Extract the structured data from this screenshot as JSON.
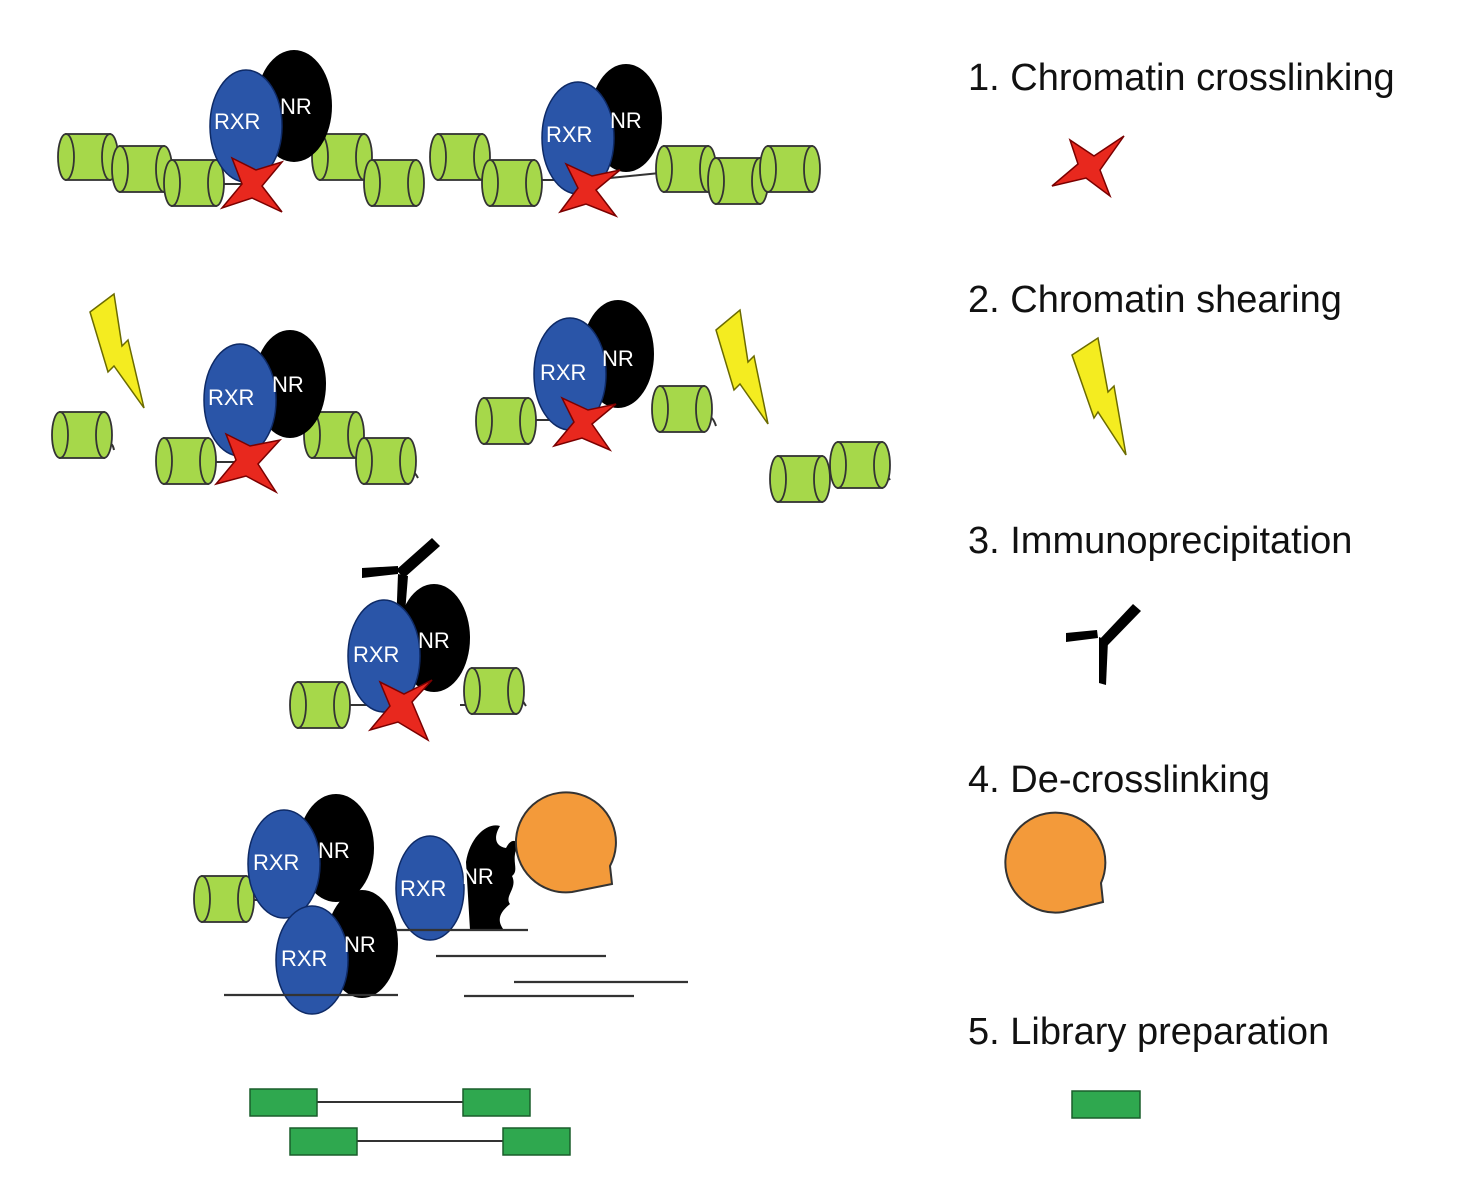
{
  "steps": [
    {
      "label": "1. Chromatin crosslinking",
      "icon": "crosslinker-star-icon"
    },
    {
      "label": "2. Chromatin shearing",
      "icon": "lightning-bolt-icon"
    },
    {
      "label": "3. Immunoprecipitation",
      "icon": "antibody-icon"
    },
    {
      "label": "4. De-crosslinking",
      "icon": "proteinase-pacman-icon"
    },
    {
      "label": "5. Library preparation",
      "icon": "adapter-block-icon"
    }
  ],
  "proteins": {
    "rxr": "RXR",
    "nr": "NR"
  },
  "colors": {
    "nucleosome": "#a6d84a",
    "rxr": "#2a55a8",
    "nr": "#000000",
    "star": "#e8281e",
    "bolt": "#f4ec20",
    "pacman": "#f39a3a",
    "adapter": "#2fa84f",
    "line": "#333333"
  }
}
